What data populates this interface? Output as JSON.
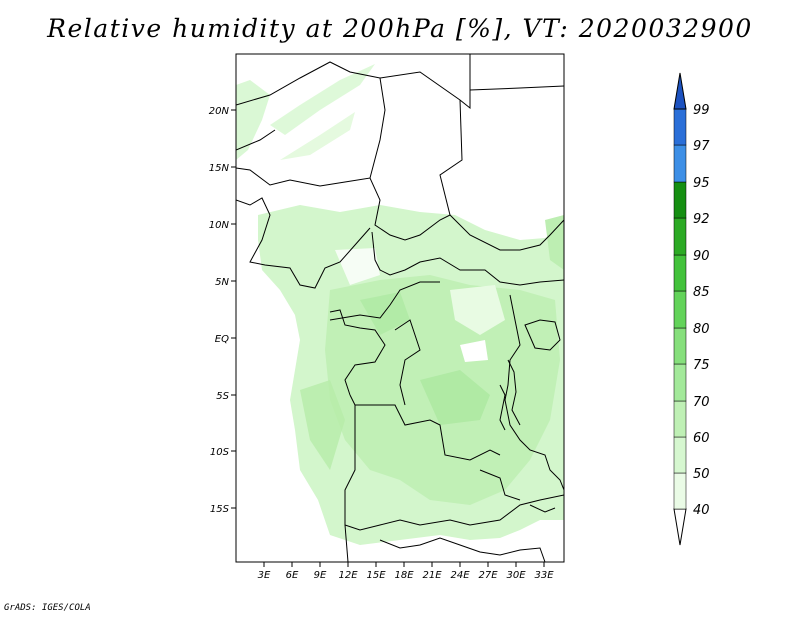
{
  "map": {
    "title": "Relative humidity at 200hPa [%], VT: 2020032900",
    "credit": "GrADS: IGES/COLA",
    "lon_labels": [
      "3E",
      "6E",
      "9E",
      "12E",
      "15E",
      "18E",
      "21E",
      "24E",
      "27E",
      "30E",
      "33E"
    ],
    "lat_labels": [
      "20N",
      "15N",
      "10N",
      "5N",
      "EQ",
      "5S",
      "10S",
      "15S"
    ],
    "colorbar": {
      "labels": [
        "40",
        "50",
        "60",
        "70",
        "75",
        "80",
        "85",
        "90",
        "92",
        "95",
        "97",
        "99"
      ],
      "colors": [
        "#eafbe6",
        "#d6f7d0",
        "#bff0b5",
        "#a3e99a",
        "#86df7c",
        "#63d35a",
        "#43c23b",
        "#2caa24",
        "#158f12",
        "#3d8fe6",
        "#2a6fd8",
        "#1c52c0"
      ]
    }
  }
}
